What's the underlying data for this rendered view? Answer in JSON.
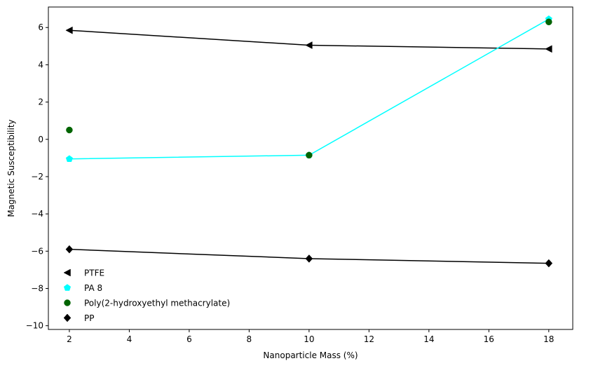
{
  "chart_data": {
    "type": "line",
    "title": "",
    "xlabel": "Nanoparticle Mass (%)",
    "ylabel": "Magnetic Susceptibility",
    "xlim": [
      1.3,
      18.8
    ],
    "ylim": [
      -10.2,
      7.1
    ],
    "xticks": [
      2,
      4,
      6,
      8,
      10,
      12,
      14,
      16,
      18
    ],
    "yticks": [
      -10,
      -8,
      -6,
      -4,
      -2,
      0,
      2,
      4,
      6
    ],
    "xtick_labels": [
      "2",
      "4",
      "6",
      "8",
      "10",
      "12",
      "14",
      "16",
      "18"
    ],
    "ytick_labels": [
      "−10",
      "−8",
      "−6",
      "−4",
      "−2",
      "0",
      "2",
      "4",
      "6"
    ],
    "grid": false,
    "legend_position": "lower-left",
    "series": [
      {
        "name": "PTFE",
        "x": [
          2,
          10,
          18
        ],
        "y": [
          5.85,
          5.05,
          4.85
        ],
        "color": "#000000",
        "marker": "triangle-left",
        "line": true
      },
      {
        "name": "PA 8",
        "x": [
          2,
          10,
          18
        ],
        "y": [
          -1.05,
          -0.85,
          6.45
        ],
        "color": "#00ffff",
        "marker": "pentagon",
        "line": true
      },
      {
        "name": "Poly(2-hydroxyethyl methacrylate)",
        "x": [
          2,
          10,
          18
        ],
        "y": [
          0.5,
          -0.85,
          6.3
        ],
        "color": "#006400",
        "marker": "circle",
        "line": false
      },
      {
        "name": "PP",
        "x": [
          2,
          10,
          18
        ],
        "y": [
          -5.9,
          -6.4,
          -6.65
        ],
        "color": "#000000",
        "marker": "diamond",
        "line": true
      }
    ]
  }
}
